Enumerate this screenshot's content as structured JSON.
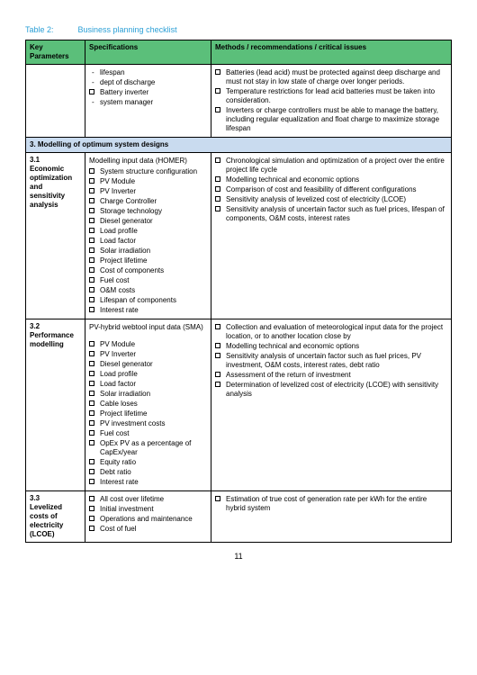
{
  "caption_label": "Table 2:",
  "caption_title": "Business planning checklist",
  "headers": {
    "col1": "Key Parameters",
    "col2": "Specifications",
    "col3": "Methods / recommendations / critical issues"
  },
  "row0": {
    "spec_dash": [
      "lifespan",
      "dept of discharge"
    ],
    "spec_cb": [
      "Battery inverter"
    ],
    "spec_dash2": [
      "system manager"
    ],
    "methods": [
      "Batteries (lead acid) must be protected against deep discharge and must not stay in low state of charge over longer periods.",
      "Temperature restrictions for lead acid batteries must be taken into consideration.",
      "Inverters or charge controllers must be able to manage the battery, including regular equalization and float charge to maximize storage lifespan"
    ]
  },
  "section3": "3.      Modelling of optimum system designs",
  "row31": {
    "num": "3.1",
    "title": "Economic optimization and sensitivity analysis",
    "subhead": "Modelling input data (HOMER)",
    "specs": [
      "System structure configuration",
      "PV Module",
      "PV Inverter",
      "Charge Controller",
      "Storage technology",
      "Diesel generator",
      "Load profile",
      "Load factor",
      "Solar irradiation",
      "Project lifetime",
      "Cost of components",
      "Fuel cost",
      "O&M costs",
      "Lifespan of components",
      "Interest rate"
    ],
    "methods": [
      "Chronological simulation and optimization of a project over the entire project life cycle",
      "Modelling technical and economic options",
      "Comparison of cost and feasibility of different configurations",
      "Sensitivity analysis of levelized cost of electricity (LCOE)",
      "Sensitivity analysis of uncertain factor such as fuel prices, lifespan of components, O&M costs, interest rates"
    ]
  },
  "row32": {
    "num": "3.2",
    "title": "Performance modelling",
    "subhead": "PV-hybrid webtool input data (SMA)",
    "specs": [
      "PV Module",
      "PV Inverter",
      "Diesel generator",
      "Load profile",
      "Load factor",
      "Solar irradiation",
      "Cable loses",
      "Project lifetime",
      "PV investment costs",
      "Fuel cost",
      "OpEx PV as a percentage of CapEx/year",
      "Equity ratio",
      "Debt ratio",
      "Interest rate"
    ],
    "methods": [
      "Collection and evaluation of meteorological input data for the project location, or to another location close by",
      "Modelling technical and economic options",
      "Sensitivity analysis of uncertain factor such as fuel prices, PV investment, O&M costs, interest rates, debt ratio",
      "Assessment of the return of investment",
      "Determination of levelized cost of electricity (LCOE) with sensitivity analysis"
    ]
  },
  "row33": {
    "num": "3.3",
    "title": "Levelized costs of electricity (LCOE)",
    "specs": [
      "All cost over lifetime",
      "Initial investment",
      "Operations and maintenance",
      "Cost of fuel"
    ],
    "methods": [
      "Estimation of true cost of generation rate per kWh for the entire hybrid system"
    ]
  },
  "page_number": "11",
  "colors": {
    "header_bg": "#5bbf7a",
    "section_bg": "#c9dbef",
    "caption_color": "#2a9fd6"
  }
}
